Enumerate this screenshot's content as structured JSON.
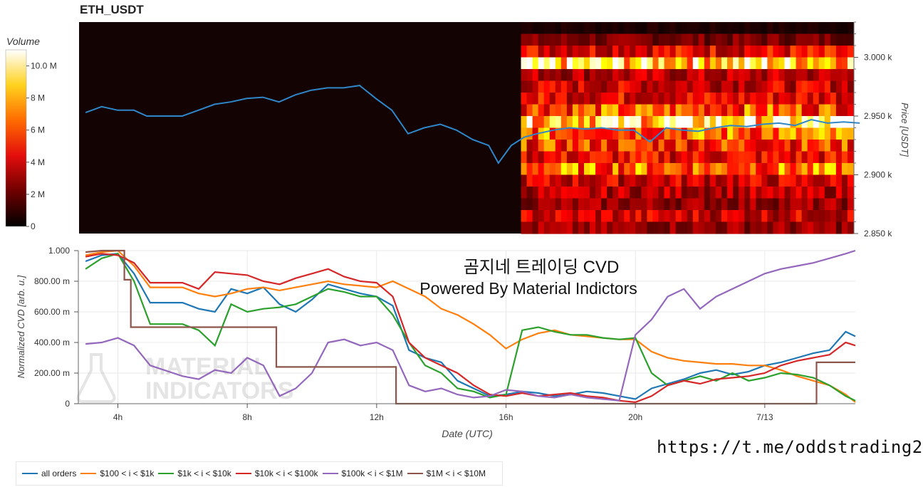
{
  "colors": {
    "all_orders": "#1f77b4",
    "tier_100_1k": "#ff7f0e",
    "tier_1k_10k": "#2ca02c",
    "tier_10k_100k": "#d62728",
    "tier_100k_1m": "#9467bd",
    "tier_1m_10m": "#8c564b"
  },
  "top": {
    "title": "ETH_USDT",
    "colorbar_label": "Volume",
    "colorbar_ticks": [
      "10.0 M",
      "8 M",
      "6 M",
      "4 M",
      "2 M",
      "0"
    ],
    "price_axis_label": "Price [USDT]",
    "price_ticks": [
      "3.000 k",
      "2.950 k",
      "2.900 k",
      "2.850 k"
    ]
  },
  "bottom": {
    "ylabel": "Normalized CVD [arb. u.]",
    "yticks": [
      "1.000",
      "800.00 m",
      "600.00 m",
      "400.00 m",
      "200.00 m",
      "0"
    ],
    "xlabel": "Date (UTC)",
    "xticks": [
      "4h",
      "8h",
      "12h",
      "16h",
      "20h",
      "7/13"
    ],
    "overlay_line1": "곰지네 트레이딩 CVD",
    "overlay_line2": "Powered By Material Indictors",
    "watermark_line1": "MATERIAL",
    "watermark_line2": "INDICATORS"
  },
  "legend": [
    {
      "key": "all_orders",
      "label": "all orders"
    },
    {
      "key": "tier_100_1k",
      "label": "$100 < i < $1k"
    },
    {
      "key": "tier_1k_10k",
      "label": "$1k < i < $10k"
    },
    {
      "key": "tier_10k_100k",
      "label": "$10k < i < $100k"
    },
    {
      "key": "tier_100k_1m",
      "label": "$100k < i < $1M"
    },
    {
      "key": "tier_1m_10m",
      "label": "$1M < i < $10M"
    }
  ],
  "footer_url": "https://t.me/oddstrading2",
  "chart_data": [
    {
      "type": "heatmap",
      "title": "ETH_USDT",
      "colorbar_label": "Volume",
      "colorbar_range": [
        0,
        11000000
      ],
      "y_axis_label": "Price [USDT]",
      "ylim": [
        2850,
        3030
      ],
      "heatmap_x_range_hours": [
        16.5,
        27
      ],
      "heatmap_bands": [
        {
          "price": 3025,
          "volume": 500000
        },
        {
          "price": 3015,
          "volume": 2000000
        },
        {
          "price": 3005,
          "volume": 4000000
        },
        {
          "price": 2995,
          "volume": 8500000
        },
        {
          "price": 2985,
          "volume": 3000000
        },
        {
          "price": 2975,
          "volume": 3500000
        },
        {
          "price": 2965,
          "volume": 4000000
        },
        {
          "price": 2955,
          "volume": 5500000
        },
        {
          "price": 2945,
          "volume": 9000000
        },
        {
          "price": 2935,
          "volume": 6000000
        },
        {
          "price": 2925,
          "volume": 5000000
        },
        {
          "price": 2915,
          "volume": 4000000
        },
        {
          "price": 2905,
          "volume": 6000000
        },
        {
          "price": 2895,
          "volume": 3500000
        },
        {
          "price": 2885,
          "volume": 3000000
        },
        {
          "price": 2875,
          "volume": 2500000
        },
        {
          "price": 2865,
          "volume": 3500000
        },
        {
          "price": 2855,
          "volume": 2500000
        }
      ],
      "price_series": {
        "x": [
          3,
          3.5,
          4,
          4.5,
          4.9,
          5.5,
          6,
          6.5,
          7,
          7.5,
          8,
          8.5,
          9,
          9.5,
          10,
          10.5,
          11,
          11.5,
          12,
          12.5,
          13,
          13.5,
          14,
          14.5,
          15,
          15.5,
          15.8,
          16.2,
          16.6,
          17,
          17.5,
          18,
          18.5,
          19,
          19.5,
          20,
          20.5,
          21,
          21.5,
          22,
          22.5,
          23,
          23.5,
          24,
          24.5,
          25,
          25.5,
          26,
          26.5,
          27
        ],
        "y": [
          2953,
          2958,
          2955,
          2955,
          2950,
          2950,
          2950,
          2955,
          2960,
          2962,
          2965,
          2966,
          2962,
          2968,
          2972,
          2974,
          2974,
          2976,
          2965,
          2955,
          2935,
          2940,
          2943,
          2938,
          2930,
          2925,
          2910,
          2925,
          2932,
          2935,
          2938,
          2940,
          2939,
          2940,
          2938,
          2938,
          2928,
          2940,
          2938,
          2937,
          2940,
          2942,
          2941,
          2943,
          2944,
          2942,
          2947,
          2944,
          2945,
          2944
        ]
      }
    },
    {
      "type": "line",
      "xlabel": "Date (UTC)",
      "ylabel": "Normalized CVD [arb. u.]",
      "x_range_hours": [
        2.8,
        26.8
      ],
      "ylim": [
        0,
        1
      ],
      "series": [
        {
          "name": "all orders",
          "key": "all_orders",
          "x": [
            3,
            3.5,
            4,
            4.5,
            5,
            6,
            6.5,
            7,
            7.5,
            8,
            8.5,
            9,
            9.5,
            10,
            10.5,
            11,
            11.5,
            12,
            12.5,
            13,
            13.5,
            14,
            14.5,
            15,
            15.5,
            16,
            16.5,
            17,
            17.5,
            18,
            18.5,
            19,
            19.5,
            20,
            20.5,
            21,
            21.5,
            22,
            22.5,
            23,
            23.5,
            24,
            24.5,
            25,
            25.5,
            26,
            26.5,
            26.8
          ],
          "y": [
            0.93,
            0.97,
            0.98,
            0.85,
            0.66,
            0.66,
            0.62,
            0.6,
            0.75,
            0.72,
            0.76,
            0.65,
            0.6,
            0.68,
            0.78,
            0.75,
            0.72,
            0.7,
            0.64,
            0.35,
            0.3,
            0.27,
            0.15,
            0.1,
            0.05,
            0.06,
            0.08,
            0.07,
            0.05,
            0.06,
            0.08,
            0.07,
            0.05,
            0.03,
            0.1,
            0.13,
            0.16,
            0.2,
            0.22,
            0.19,
            0.21,
            0.25,
            0.27,
            0.3,
            0.33,
            0.35,
            0.47,
            0.44
          ]
        },
        {
          "name": "$100 < i < $1k",
          "key": "tier_100_1k",
          "x": [
            3,
            3.5,
            4,
            4.5,
            5,
            6,
            6.5,
            7,
            7.5,
            8,
            8.5,
            9,
            9.5,
            10,
            10.5,
            11,
            11.5,
            12,
            12.5,
            13,
            13.5,
            14,
            14.5,
            15,
            15.5,
            16,
            16.5,
            17,
            17.5,
            18,
            18.5,
            19,
            19.5,
            20,
            20.5,
            21,
            21.5,
            22,
            22.5,
            23,
            23.5,
            24,
            24.5,
            25,
            25.5,
            26,
            26.5,
            26.8
          ],
          "y": [
            0.97,
            0.99,
            1.0,
            0.9,
            0.76,
            0.76,
            0.72,
            0.7,
            0.72,
            0.75,
            0.76,
            0.74,
            0.76,
            0.78,
            0.8,
            0.78,
            0.77,
            0.76,
            0.8,
            0.75,
            0.7,
            0.62,
            0.58,
            0.52,
            0.45,
            0.36,
            0.42,
            0.46,
            0.48,
            0.45,
            0.44,
            0.43,
            0.42,
            0.42,
            0.34,
            0.3,
            0.28,
            0.27,
            0.26,
            0.26,
            0.25,
            0.25,
            0.22,
            0.18,
            0.15,
            0.12,
            0.06,
            0.01
          ]
        },
        {
          "name": "$1k < i < $10k",
          "key": "tier_1k_10k",
          "x": [
            3,
            3.5,
            4,
            4.5,
            5,
            6,
            6.5,
            7,
            7.5,
            8,
            8.5,
            9,
            9.5,
            10,
            10.5,
            11,
            11.5,
            12,
            12.5,
            13,
            13.5,
            14,
            14.5,
            15,
            15.5,
            16,
            16.5,
            17,
            17.5,
            18,
            18.5,
            19,
            19.5,
            20,
            20.5,
            21,
            21.5,
            22,
            22.5,
            23,
            23.5,
            24,
            24.5,
            25,
            25.5,
            26,
            26.5,
            26.8
          ],
          "y": [
            0.88,
            0.95,
            0.98,
            0.8,
            0.52,
            0.52,
            0.48,
            0.38,
            0.65,
            0.6,
            0.62,
            0.63,
            0.65,
            0.7,
            0.75,
            0.73,
            0.7,
            0.7,
            0.58,
            0.4,
            0.25,
            0.2,
            0.1,
            0.08,
            0.04,
            0.06,
            0.48,
            0.5,
            0.47,
            0.45,
            0.45,
            0.43,
            0.42,
            0.43,
            0.2,
            0.12,
            0.15,
            0.18,
            0.15,
            0.2,
            0.15,
            0.17,
            0.2,
            0.19,
            0.17,
            0.12,
            0.05,
            0.02
          ]
        },
        {
          "name": "$10k < i < $100k",
          "key": "tier_10k_100k",
          "x": [
            3,
            3.5,
            4,
            4.5,
            5,
            6,
            6.5,
            7,
            7.5,
            8,
            8.5,
            9,
            9.5,
            10,
            10.5,
            11,
            11.5,
            12,
            12.5,
            13,
            13.5,
            14,
            14.5,
            15,
            15.5,
            16,
            16.5,
            17,
            17.5,
            18,
            18.5,
            19,
            19.5,
            20,
            20.5,
            21,
            21.5,
            22,
            22.5,
            23,
            23.5,
            24,
            24.5,
            25,
            25.5,
            26,
            26.5,
            26.8
          ],
          "y": [
            0.96,
            0.98,
            0.97,
            0.92,
            0.79,
            0.79,
            0.75,
            0.86,
            0.85,
            0.84,
            0.8,
            0.78,
            0.82,
            0.85,
            0.88,
            0.83,
            0.8,
            0.79,
            0.7,
            0.4,
            0.3,
            0.25,
            0.2,
            0.12,
            0.06,
            0.05,
            0.07,
            0.05,
            0.06,
            0.07,
            0.05,
            0.04,
            0.02,
            0.01,
            0.05,
            0.12,
            0.15,
            0.13,
            0.16,
            0.17,
            0.18,
            0.2,
            0.25,
            0.28,
            0.3,
            0.32,
            0.4,
            0.38
          ]
        },
        {
          "name": "$100k < i < $1M",
          "key": "tier_100k_1m",
          "x": [
            3,
            3.5,
            4,
            4.5,
            5,
            6,
            6.5,
            7,
            7.5,
            8,
            8.5,
            9,
            9.5,
            10,
            10.5,
            11,
            11.5,
            12,
            12.5,
            13,
            13.5,
            14,
            14.5,
            15,
            15.5,
            16,
            16.5,
            17,
            17.5,
            18,
            18.5,
            19,
            19.5,
            20,
            20.5,
            21,
            21.5,
            22,
            22.5,
            23,
            23.5,
            24,
            24.5,
            25,
            25.5,
            26,
            26.5,
            26.8
          ],
          "y": [
            0.39,
            0.4,
            0.43,
            0.38,
            0.25,
            0.18,
            0.16,
            0.22,
            0.2,
            0.3,
            0.25,
            0.05,
            0.1,
            0.2,
            0.4,
            0.42,
            0.38,
            0.4,
            0.35,
            0.12,
            0.08,
            0.1,
            0.06,
            0.04,
            0.05,
            0.09,
            0.08,
            0.05,
            0.04,
            0.06,
            0.04,
            0.03,
            0.02,
            0.45,
            0.55,
            0.7,
            0.75,
            0.62,
            0.7,
            0.75,
            0.8,
            0.85,
            0.88,
            0.9,
            0.92,
            0.95,
            0.98,
            1.0
          ]
        },
        {
          "name": "$1M < i < $10M",
          "key": "tier_1m_10m",
          "x": [
            3,
            3.5,
            4,
            4.2,
            4.2,
            4.4,
            4.4,
            8.9,
            8.9,
            12.6,
            12.6,
            25.6,
            25.6,
            26.8
          ],
          "y": [
            0.99,
            1.0,
            1.0,
            1.0,
            0.81,
            0.81,
            0.5,
            0.5,
            0.24,
            0.24,
            0.0,
            0.0,
            0.27,
            0.27
          ]
        }
      ]
    }
  ]
}
